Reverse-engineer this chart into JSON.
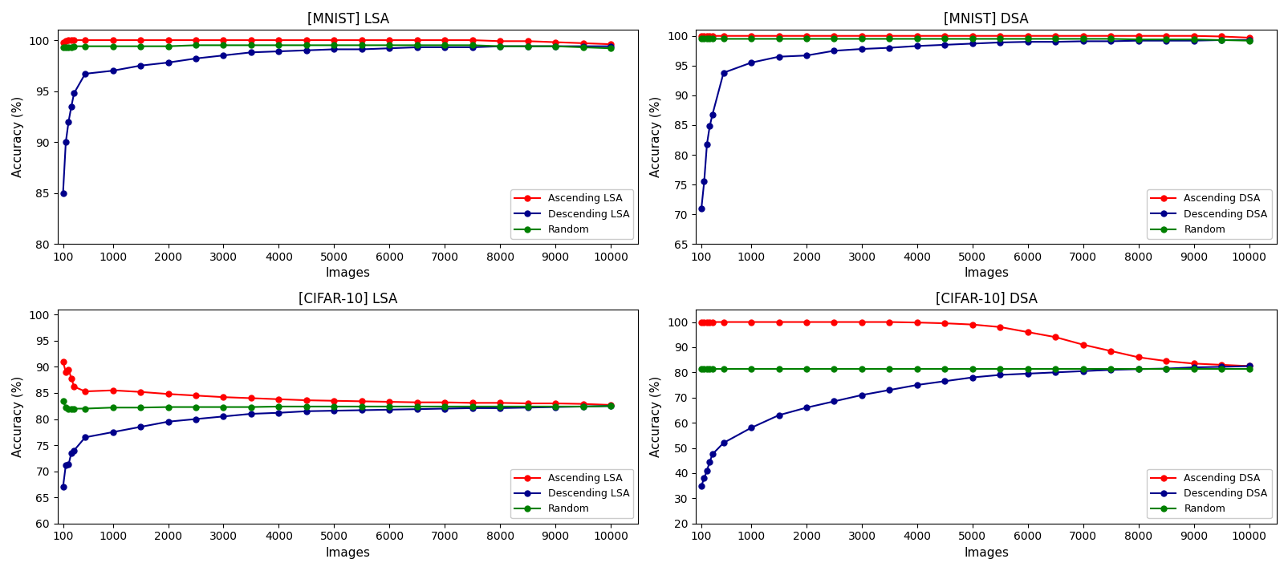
{
  "subplots": [
    {
      "title": "[MNIST] LSA",
      "xlabel": "Images",
      "ylabel": "Accuracy (%)",
      "ylim": [
        80,
        101
      ],
      "yticks": [
        80,
        85,
        90,
        95,
        100
      ],
      "xticks": [
        100,
        1000,
        2000,
        3000,
        4000,
        5000,
        6000,
        7000,
        8000,
        9000,
        10000
      ],
      "xlim": [
        0,
        10500
      ],
      "series": [
        {
          "label": "Ascending LSA",
          "color": "#ff0000",
          "marker": "o",
          "x": [
            100,
            150,
            200,
            250,
            300,
            500,
            1000,
            1500,
            2000,
            2500,
            3000,
            3500,
            4000,
            4500,
            5000,
            5500,
            6000,
            6500,
            7000,
            7500,
            8000,
            8500,
            9000,
            9500,
            10000
          ],
          "y": [
            99.8,
            99.9,
            100.0,
            100.0,
            100.0,
            100.0,
            100.0,
            100.0,
            100.0,
            100.0,
            100.0,
            100.0,
            100.0,
            100.0,
            100.0,
            100.0,
            100.0,
            100.0,
            100.0,
            100.0,
            99.9,
            99.9,
            99.8,
            99.7,
            99.6
          ]
        },
        {
          "label": "Descending LSA",
          "color": "#00008b",
          "marker": "o",
          "x": [
            100,
            150,
            200,
            250,
            300,
            500,
            1000,
            1500,
            2000,
            2500,
            3000,
            3500,
            4000,
            4500,
            5000,
            5500,
            6000,
            6500,
            7000,
            7500,
            8000,
            8500,
            9000,
            9500,
            10000
          ],
          "y": [
            85.0,
            90.0,
            92.0,
            93.5,
            94.8,
            96.7,
            97.0,
            97.5,
            97.8,
            98.2,
            98.5,
            98.8,
            98.9,
            99.0,
            99.1,
            99.1,
            99.2,
            99.3,
            99.3,
            99.3,
            99.4,
            99.4,
            99.4,
            99.4,
            99.4
          ]
        },
        {
          "label": "Random",
          "color": "#008000",
          "marker": "o",
          "x": [
            100,
            150,
            200,
            250,
            300,
            500,
            1000,
            1500,
            2000,
            2500,
            3000,
            3500,
            4000,
            4500,
            5000,
            5500,
            6000,
            6500,
            7000,
            7500,
            8000,
            8500,
            9000,
            9500,
            10000
          ],
          "y": [
            99.3,
            99.3,
            99.3,
            99.3,
            99.4,
            99.4,
            99.4,
            99.4,
            99.4,
            99.5,
            99.5,
            99.5,
            99.5,
            99.5,
            99.5,
            99.5,
            99.5,
            99.5,
            99.5,
            99.5,
            99.4,
            99.4,
            99.4,
            99.3,
            99.2
          ]
        }
      ],
      "legend_labels": [
        "Ascending LSA",
        "Descending LSA",
        "Random"
      ],
      "legend_loc": "lower right"
    },
    {
      "title": "[MNIST] DSA",
      "xlabel": "Images",
      "ylabel": "Accuracy (%)",
      "ylim": [
        65,
        101
      ],
      "yticks": [
        65,
        70,
        75,
        80,
        85,
        90,
        95,
        100
      ],
      "xticks": [
        100,
        1000,
        2000,
        3000,
        4000,
        5000,
        6000,
        7000,
        8000,
        9000,
        10000
      ],
      "xlim": [
        0,
        10500
      ],
      "series": [
        {
          "label": "Ascending DSA",
          "color": "#ff0000",
          "marker": "o",
          "x": [
            100,
            150,
            200,
            250,
            300,
            500,
            1000,
            1500,
            2000,
            2500,
            3000,
            3500,
            4000,
            4500,
            5000,
            5500,
            6000,
            6500,
            7000,
            7500,
            8000,
            8500,
            9000,
            9500,
            10000
          ],
          "y": [
            100.0,
            100.0,
            100.0,
            100.0,
            100.0,
            100.0,
            100.0,
            100.0,
            100.0,
            100.0,
            100.0,
            100.0,
            100.0,
            100.0,
            100.0,
            100.0,
            100.0,
            100.0,
            100.0,
            100.0,
            100.0,
            100.0,
            100.0,
            99.9,
            99.7
          ]
        },
        {
          "label": "Descending DSA",
          "color": "#00008b",
          "marker": "o",
          "x": [
            100,
            150,
            200,
            250,
            300,
            500,
            1000,
            1500,
            2000,
            2500,
            3000,
            3500,
            4000,
            4500,
            5000,
            5500,
            6000,
            6500,
            7000,
            7500,
            8000,
            8500,
            9000,
            9500,
            10000
          ],
          "y": [
            71.0,
            75.5,
            81.8,
            84.8,
            86.8,
            93.8,
            95.5,
            96.5,
            96.7,
            97.5,
            97.8,
            98.0,
            98.3,
            98.5,
            98.7,
            98.9,
            99.0,
            99.0,
            99.1,
            99.1,
            99.2,
            99.2,
            99.2,
            99.3,
            99.3
          ]
        },
        {
          "label": "Random",
          "color": "#008000",
          "marker": "o",
          "x": [
            100,
            150,
            200,
            250,
            300,
            500,
            1000,
            1500,
            2000,
            2500,
            3000,
            3500,
            4000,
            4500,
            5000,
            5500,
            6000,
            6500,
            7000,
            7500,
            8000,
            8500,
            9000,
            9500,
            10000
          ],
          "y": [
            99.5,
            99.5,
            99.5,
            99.5,
            99.5,
            99.5,
            99.5,
            99.5,
            99.5,
            99.5,
            99.5,
            99.5,
            99.5,
            99.5,
            99.5,
            99.5,
            99.5,
            99.5,
            99.5,
            99.5,
            99.4,
            99.4,
            99.4,
            99.3,
            99.2
          ]
        }
      ],
      "legend_labels": [
        "Ascending DSA",
        "Descending DSA",
        "Random"
      ],
      "legend_loc": "lower right"
    },
    {
      "title": "[CIFAR-10] LSA",
      "xlabel": "Images",
      "ylabel": "Accuracy (%)",
      "ylim": [
        60,
        101
      ],
      "yticks": [
        60,
        65,
        70,
        75,
        80,
        85,
        90,
        95,
        100
      ],
      "xticks": [
        100,
        1000,
        2000,
        3000,
        4000,
        5000,
        6000,
        7000,
        8000,
        9000,
        10000
      ],
      "xlim": [
        0,
        10500
      ],
      "series": [
        {
          "label": "Ascending LSA",
          "color": "#ff0000",
          "marker": "o",
          "x": [
            100,
            150,
            200,
            250,
            300,
            500,
            1000,
            1500,
            2000,
            2500,
            3000,
            3500,
            4000,
            4500,
            5000,
            5500,
            6000,
            6500,
            7000,
            7500,
            8000,
            8500,
            9000,
            9500,
            10000
          ],
          "y": [
            91.0,
            89.0,
            89.5,
            87.8,
            86.2,
            85.3,
            85.5,
            85.2,
            84.8,
            84.5,
            84.2,
            84.0,
            83.8,
            83.6,
            83.5,
            83.4,
            83.3,
            83.2,
            83.2,
            83.1,
            83.1,
            83.0,
            83.0,
            82.9,
            82.7
          ]
        },
        {
          "label": "Descending LSA",
          "color": "#00008b",
          "marker": "o",
          "x": [
            100,
            150,
            200,
            250,
            300,
            500,
            1000,
            1500,
            2000,
            2500,
            3000,
            3500,
            4000,
            4500,
            5000,
            5500,
            6000,
            6500,
            7000,
            7500,
            8000,
            8500,
            9000,
            9500,
            10000
          ],
          "y": [
            67.0,
            71.2,
            71.3,
            73.5,
            74.0,
            76.5,
            77.5,
            78.5,
            79.5,
            80.0,
            80.5,
            81.0,
            81.2,
            81.5,
            81.6,
            81.7,
            81.8,
            81.9,
            82.0,
            82.1,
            82.1,
            82.2,
            82.3,
            82.4,
            82.5
          ]
        },
        {
          "label": "Random",
          "color": "#008000",
          "marker": "o",
          "x": [
            100,
            150,
            200,
            250,
            300,
            500,
            1000,
            1500,
            2000,
            2500,
            3000,
            3500,
            4000,
            4500,
            5000,
            5500,
            6000,
            6500,
            7000,
            7500,
            8000,
            8500,
            9000,
            9500,
            10000
          ],
          "y": [
            83.5,
            82.2,
            82.0,
            82.0,
            82.0,
            82.0,
            82.2,
            82.2,
            82.3,
            82.3,
            82.3,
            82.3,
            82.4,
            82.4,
            82.4,
            82.4,
            82.4,
            82.4,
            82.4,
            82.4,
            82.4,
            82.4,
            82.4,
            82.4,
            82.5
          ]
        }
      ],
      "legend_labels": [
        "Ascending LSA",
        "Descending LSA",
        "Random"
      ],
      "legend_loc": "lower right"
    },
    {
      "title": "[CIFAR-10] DSA",
      "xlabel": "Images",
      "ylabel": "Accuracy (%)",
      "ylim": [
        20,
        105
      ],
      "yticks": [
        20,
        30,
        40,
        50,
        60,
        70,
        80,
        90,
        100
      ],
      "xticks": [
        100,
        1000,
        2000,
        3000,
        4000,
        5000,
        6000,
        7000,
        8000,
        9000,
        10000
      ],
      "xlim": [
        0,
        10500
      ],
      "series": [
        {
          "label": "Ascending DSA",
          "color": "#ff0000",
          "marker": "o",
          "x": [
            100,
            150,
            200,
            250,
            300,
            500,
            1000,
            1500,
            2000,
            2500,
            3000,
            3500,
            4000,
            4500,
            5000,
            5500,
            6000,
            6500,
            7000,
            7500,
            8000,
            8500,
            9000,
            9500,
            10000
          ],
          "y": [
            100.0,
            100.0,
            100.0,
            100.0,
            100.0,
            100.0,
            100.0,
            100.0,
            100.0,
            100.0,
            100.0,
            100.0,
            99.8,
            99.5,
            99.0,
            98.0,
            96.0,
            94.0,
            91.0,
            88.5,
            86.0,
            84.5,
            83.5,
            83.0,
            82.5
          ]
        },
        {
          "label": "Descending DSA",
          "color": "#00008b",
          "marker": "o",
          "x": [
            100,
            150,
            200,
            250,
            300,
            500,
            1000,
            1500,
            2000,
            2500,
            3000,
            3500,
            4000,
            4500,
            5000,
            5500,
            6000,
            6500,
            7000,
            7500,
            8000,
            8500,
            9000,
            9500,
            10000
          ],
          "y": [
            35.0,
            38.0,
            41.0,
            44.5,
            47.5,
            52.0,
            58.0,
            63.0,
            66.0,
            68.5,
            71.0,
            73.0,
            75.0,
            76.5,
            78.0,
            79.0,
            79.5,
            80.0,
            80.5,
            81.0,
            81.3,
            81.5,
            82.0,
            82.2,
            82.5
          ]
        },
        {
          "label": "Random",
          "color": "#008000",
          "marker": "o",
          "x": [
            100,
            150,
            200,
            250,
            300,
            500,
            1000,
            1500,
            2000,
            2500,
            3000,
            3500,
            4000,
            4500,
            5000,
            5500,
            6000,
            6500,
            7000,
            7500,
            8000,
            8500,
            9000,
            9500,
            10000
          ],
          "y": [
            81.5,
            81.5,
            81.5,
            81.5,
            81.5,
            81.5,
            81.5,
            81.5,
            81.5,
            81.5,
            81.5,
            81.5,
            81.5,
            81.5,
            81.5,
            81.5,
            81.5,
            81.5,
            81.5,
            81.5,
            81.5,
            81.5,
            81.5,
            81.5,
            81.5
          ]
        }
      ],
      "legend_labels": [
        "Ascending DSA",
        "Descending DSA",
        "Random"
      ],
      "legend_loc": "lower right"
    }
  ],
  "figsize": [
    16.06,
    7.12
  ],
  "dpi": 100,
  "markersize": 5,
  "linewidth": 1.5
}
